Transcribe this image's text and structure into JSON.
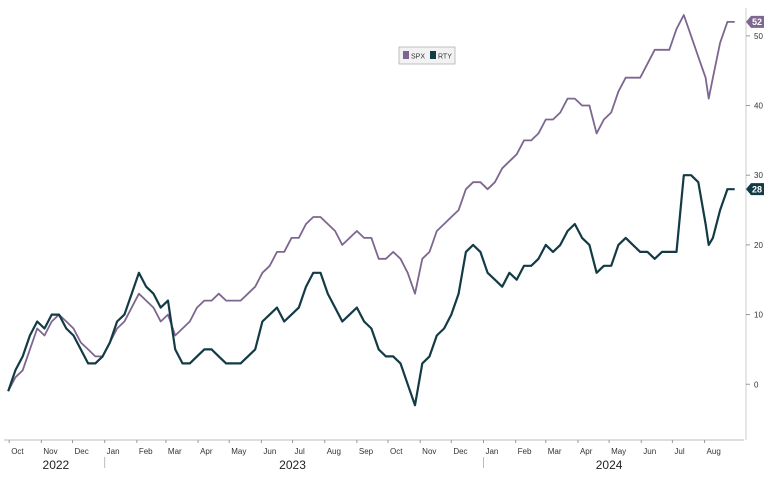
{
  "chart_data": {
    "type": "line",
    "title": "",
    "xlabel": "",
    "ylabel": "",
    "ylim": [
      -8,
      54
    ],
    "y_ticks": [
      0,
      10,
      20,
      30,
      40,
      50
    ],
    "x_range": [
      "2022-09-26",
      "2024-09-08"
    ],
    "month_ticks": [
      {
        "date": "2022-10-01",
        "label": "Oct"
      },
      {
        "date": "2022-11-01",
        "label": "Nov"
      },
      {
        "date": "2022-12-01",
        "label": "Dec"
      },
      {
        "date": "2023-01-01",
        "label": "Jan"
      },
      {
        "date": "2023-02-01",
        "label": "Feb"
      },
      {
        "date": "2023-03-01",
        "label": "Mar"
      },
      {
        "date": "2023-04-01",
        "label": "Apr"
      },
      {
        "date": "2023-05-01",
        "label": "May"
      },
      {
        "date": "2023-06-01",
        "label": "Jun"
      },
      {
        "date": "2023-07-01",
        "label": "Jul"
      },
      {
        "date": "2023-08-01",
        "label": "Aug"
      },
      {
        "date": "2023-09-01",
        "label": "Sep"
      },
      {
        "date": "2023-10-01",
        "label": "Oct"
      },
      {
        "date": "2023-11-01",
        "label": "Nov"
      },
      {
        "date": "2023-12-01",
        "label": "Dec"
      },
      {
        "date": "2024-01-01",
        "label": "Jan"
      },
      {
        "date": "2024-02-01",
        "label": "Feb"
      },
      {
        "date": "2024-03-01",
        "label": "Mar"
      },
      {
        "date": "2024-04-01",
        "label": "Apr"
      },
      {
        "date": "2024-05-01",
        "label": "May"
      },
      {
        "date": "2024-06-01",
        "label": "Jun"
      },
      {
        "date": "2024-07-01",
        "label": "Jul"
      },
      {
        "date": "2024-08-01",
        "label": "Aug"
      }
    ],
    "year_labels": [
      {
        "date": "2022-11-15",
        "label": "2022"
      },
      {
        "date": "2023-07-01",
        "label": "2023"
      },
      {
        "date": "2024-05-01",
        "label": "2024"
      }
    ],
    "year_separators": [
      "2023-01-01",
      "2024-01-01"
    ],
    "legend_position": "top-center",
    "grid": false,
    "series": [
      {
        "name": "SPX",
        "color": "#7d6690",
        "last_value_label": "52",
        "points": [
          [
            "2022-09-30",
            -1
          ],
          [
            "2022-10-07",
            1
          ],
          [
            "2022-10-14",
            2
          ],
          [
            "2022-10-21",
            5
          ],
          [
            "2022-10-28",
            8
          ],
          [
            "2022-11-04",
            7
          ],
          [
            "2022-11-11",
            9
          ],
          [
            "2022-11-18",
            10
          ],
          [
            "2022-11-25",
            9
          ],
          [
            "2022-12-02",
            8
          ],
          [
            "2022-12-09",
            6
          ],
          [
            "2022-12-16",
            5
          ],
          [
            "2022-12-23",
            4
          ],
          [
            "2022-12-30",
            4
          ],
          [
            "2023-01-06",
            6
          ],
          [
            "2023-01-13",
            8
          ],
          [
            "2023-01-20",
            9
          ],
          [
            "2023-01-27",
            11
          ],
          [
            "2023-02-03",
            13
          ],
          [
            "2023-02-10",
            12
          ],
          [
            "2023-02-17",
            11
          ],
          [
            "2023-02-24",
            9
          ],
          [
            "2023-03-03",
            10
          ],
          [
            "2023-03-10",
            7
          ],
          [
            "2023-03-17",
            8
          ],
          [
            "2023-03-24",
            9
          ],
          [
            "2023-03-31",
            11
          ],
          [
            "2023-04-07",
            12
          ],
          [
            "2023-04-14",
            12
          ],
          [
            "2023-04-21",
            13
          ],
          [
            "2023-04-28",
            12
          ],
          [
            "2023-05-05",
            12
          ],
          [
            "2023-05-12",
            12
          ],
          [
            "2023-05-19",
            13
          ],
          [
            "2023-05-26",
            14
          ],
          [
            "2023-06-02",
            16
          ],
          [
            "2023-06-09",
            17
          ],
          [
            "2023-06-16",
            19
          ],
          [
            "2023-06-23",
            19
          ],
          [
            "2023-06-30",
            21
          ],
          [
            "2023-07-07",
            21
          ],
          [
            "2023-07-14",
            23
          ],
          [
            "2023-07-21",
            24
          ],
          [
            "2023-07-28",
            24
          ],
          [
            "2023-08-04",
            23
          ],
          [
            "2023-08-11",
            22
          ],
          [
            "2023-08-18",
            20
          ],
          [
            "2023-08-25",
            21
          ],
          [
            "2023-09-01",
            22
          ],
          [
            "2023-09-08",
            21
          ],
          [
            "2023-09-15",
            21
          ],
          [
            "2023-09-22",
            18
          ],
          [
            "2023-09-29",
            18
          ],
          [
            "2023-10-06",
            19
          ],
          [
            "2023-10-13",
            18
          ],
          [
            "2023-10-20",
            16
          ],
          [
            "2023-10-27",
            13
          ],
          [
            "2023-11-03",
            18
          ],
          [
            "2023-11-10",
            19
          ],
          [
            "2023-11-17",
            22
          ],
          [
            "2023-11-24",
            23
          ],
          [
            "2023-12-01",
            24
          ],
          [
            "2023-12-08",
            25
          ],
          [
            "2023-12-15",
            28
          ],
          [
            "2023-12-22",
            29
          ],
          [
            "2023-12-29",
            29
          ],
          [
            "2024-01-05",
            28
          ],
          [
            "2024-01-12",
            29
          ],
          [
            "2024-01-19",
            31
          ],
          [
            "2024-01-26",
            32
          ],
          [
            "2024-02-02",
            33
          ],
          [
            "2024-02-09",
            35
          ],
          [
            "2024-02-16",
            35
          ],
          [
            "2024-02-23",
            36
          ],
          [
            "2024-03-01",
            38
          ],
          [
            "2024-03-08",
            38
          ],
          [
            "2024-03-15",
            39
          ],
          [
            "2024-03-22",
            41
          ],
          [
            "2024-03-29",
            41
          ],
          [
            "2024-04-05",
            40
          ],
          [
            "2024-04-12",
            40
          ],
          [
            "2024-04-19",
            36
          ],
          [
            "2024-04-26",
            38
          ],
          [
            "2024-05-03",
            39
          ],
          [
            "2024-05-10",
            42
          ],
          [
            "2024-05-17",
            44
          ],
          [
            "2024-05-24",
            44
          ],
          [
            "2024-05-31",
            44
          ],
          [
            "2024-06-07",
            46
          ],
          [
            "2024-06-14",
            48
          ],
          [
            "2024-06-21",
            48
          ],
          [
            "2024-06-28",
            48
          ],
          [
            "2024-07-05",
            51
          ],
          [
            "2024-07-12",
            53
          ],
          [
            "2024-07-19",
            50
          ],
          [
            "2024-07-26",
            47
          ],
          [
            "2024-08-02",
            44
          ],
          [
            "2024-08-05",
            41
          ],
          [
            "2024-08-09",
            44
          ],
          [
            "2024-08-16",
            49
          ],
          [
            "2024-08-23",
            52
          ],
          [
            "2024-08-30",
            52
          ]
        ]
      },
      {
        "name": "RTY",
        "color": "#123b45",
        "last_value_label": "28",
        "points": [
          [
            "2022-09-30",
            -1
          ],
          [
            "2022-10-07",
            2
          ],
          [
            "2022-10-14",
            4
          ],
          [
            "2022-10-21",
            7
          ],
          [
            "2022-10-28",
            9
          ],
          [
            "2022-11-04",
            8
          ],
          [
            "2022-11-11",
            10
          ],
          [
            "2022-11-18",
            10
          ],
          [
            "2022-11-25",
            8
          ],
          [
            "2022-12-02",
            7
          ],
          [
            "2022-12-09",
            5
          ],
          [
            "2022-12-16",
            3
          ],
          [
            "2022-12-23",
            3
          ],
          [
            "2022-12-30",
            4
          ],
          [
            "2023-01-06",
            6
          ],
          [
            "2023-01-13",
            9
          ],
          [
            "2023-01-20",
            10
          ],
          [
            "2023-01-27",
            13
          ],
          [
            "2023-02-03",
            16
          ],
          [
            "2023-02-10",
            14
          ],
          [
            "2023-02-17",
            13
          ],
          [
            "2023-02-24",
            11
          ],
          [
            "2023-03-03",
            12
          ],
          [
            "2023-03-10",
            5
          ],
          [
            "2023-03-17",
            3
          ],
          [
            "2023-03-24",
            3
          ],
          [
            "2023-03-31",
            4
          ],
          [
            "2023-04-07",
            5
          ],
          [
            "2023-04-14",
            5
          ],
          [
            "2023-04-21",
            4
          ],
          [
            "2023-04-28",
            3
          ],
          [
            "2023-05-05",
            3
          ],
          [
            "2023-05-12",
            3
          ],
          [
            "2023-05-19",
            4
          ],
          [
            "2023-05-26",
            5
          ],
          [
            "2023-06-02",
            9
          ],
          [
            "2023-06-09",
            10
          ],
          [
            "2023-06-16",
            11
          ],
          [
            "2023-06-23",
            9
          ],
          [
            "2023-06-30",
            10
          ],
          [
            "2023-07-07",
            11
          ],
          [
            "2023-07-14",
            14
          ],
          [
            "2023-07-21",
            16
          ],
          [
            "2023-07-28",
            16
          ],
          [
            "2023-08-04",
            13
          ],
          [
            "2023-08-11",
            11
          ],
          [
            "2023-08-18",
            9
          ],
          [
            "2023-08-25",
            10
          ],
          [
            "2023-09-01",
            11
          ],
          [
            "2023-09-08",
            9
          ],
          [
            "2023-09-15",
            8
          ],
          [
            "2023-09-22",
            5
          ],
          [
            "2023-09-29",
            4
          ],
          [
            "2023-10-06",
            4
          ],
          [
            "2023-10-13",
            3
          ],
          [
            "2023-10-20",
            0
          ],
          [
            "2023-10-27",
            -3
          ],
          [
            "2023-11-03",
            3
          ],
          [
            "2023-11-10",
            4
          ],
          [
            "2023-11-17",
            7
          ],
          [
            "2023-11-24",
            8
          ],
          [
            "2023-12-01",
            10
          ],
          [
            "2023-12-08",
            13
          ],
          [
            "2023-12-15",
            19
          ],
          [
            "2023-12-22",
            20
          ],
          [
            "2023-12-29",
            19
          ],
          [
            "2024-01-05",
            16
          ],
          [
            "2024-01-12",
            15
          ],
          [
            "2024-01-19",
            14
          ],
          [
            "2024-01-26",
            16
          ],
          [
            "2024-02-02",
            15
          ],
          [
            "2024-02-09",
            17
          ],
          [
            "2024-02-16",
            17
          ],
          [
            "2024-02-23",
            18
          ],
          [
            "2024-03-01",
            20
          ],
          [
            "2024-03-08",
            19
          ],
          [
            "2024-03-15",
            20
          ],
          [
            "2024-03-22",
            22
          ],
          [
            "2024-03-29",
            23
          ],
          [
            "2024-04-05",
            21
          ],
          [
            "2024-04-12",
            20
          ],
          [
            "2024-04-19",
            16
          ],
          [
            "2024-04-26",
            17
          ],
          [
            "2024-05-03",
            17
          ],
          [
            "2024-05-10",
            20
          ],
          [
            "2024-05-17",
            21
          ],
          [
            "2024-05-24",
            20
          ],
          [
            "2024-05-31",
            19
          ],
          [
            "2024-06-07",
            19
          ],
          [
            "2024-06-14",
            18
          ],
          [
            "2024-06-21",
            19
          ],
          [
            "2024-06-28",
            19
          ],
          [
            "2024-07-05",
            19
          ],
          [
            "2024-07-12",
            30
          ],
          [
            "2024-07-19",
            30
          ],
          [
            "2024-07-26",
            29
          ],
          [
            "2024-08-02",
            23
          ],
          [
            "2024-08-05",
            20
          ],
          [
            "2024-08-09",
            21
          ],
          [
            "2024-08-16",
            25
          ],
          [
            "2024-08-23",
            28
          ],
          [
            "2024-08-30",
            28
          ]
        ]
      }
    ]
  }
}
